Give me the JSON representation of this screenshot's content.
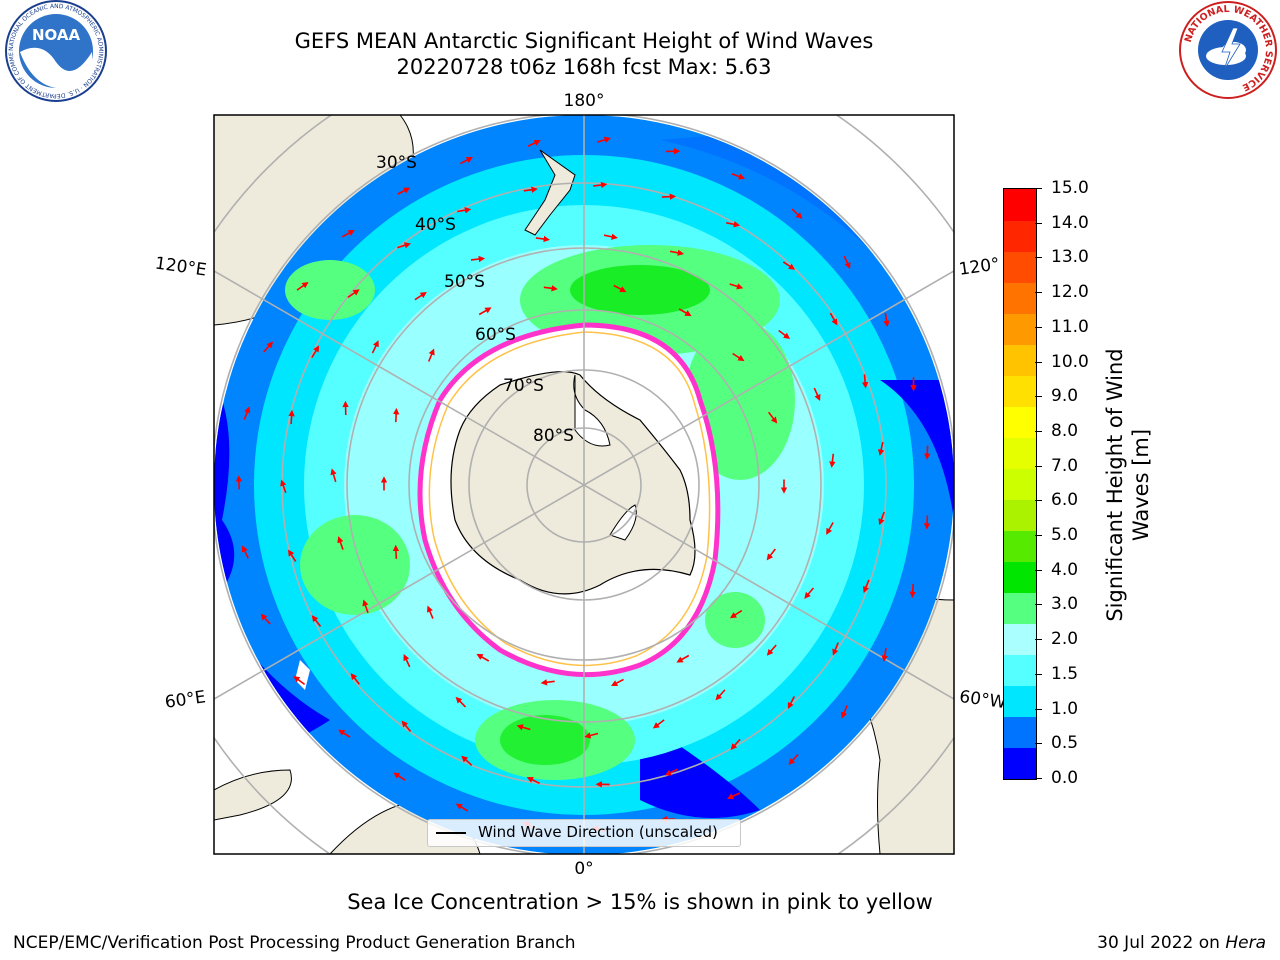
{
  "title": {
    "line1": "GEFS MEAN Antarctic Significant Height of Wind Waves",
    "line2": "20220728 t06z 168h fcst   Max: 5.63"
  },
  "map": {
    "projection": "South polar stereographic",
    "longitude_labels": [
      "180°",
      "120°E",
      "120°",
      "60°E",
      "60°W",
      "0°"
    ],
    "latitude_labels": [
      "30°S",
      "40°S",
      "50°S",
      "60°S",
      "70°S",
      "80°S"
    ],
    "legend_label": "Wind Wave Direction (unscaled)",
    "land_color": "#eeebdc",
    "arrow_color": "#ff0000"
  },
  "colorbar": {
    "title": "Significant Height of Wind Waves [m]",
    "tick_labels": [
      "0.0",
      "0.5",
      "1.0",
      "1.5",
      "2.0",
      "3.0",
      "4.0",
      "5.0",
      "6.0",
      "7.0",
      "8.0",
      "9.0",
      "10.0",
      "11.0",
      "12.0",
      "13.0",
      "14.0",
      "15.0"
    ],
    "colors": [
      "#0000ff",
      "#0073ff",
      "#00e6ff",
      "#55ffff",
      "#aaffff",
      "#55ff7f",
      "#00e600",
      "#55ea00",
      "#aaf200",
      "#ccff00",
      "#e6ff00",
      "#ffff00",
      "#ffe000",
      "#ffc300",
      "#ff9900",
      "#ff7300",
      "#ff4c00",
      "#ff2600",
      "#ff0000"
    ]
  },
  "ice_note": "Sea Ice Concentration > 15% is shown in pink to yellow",
  "footer": {
    "credit": "NCEP/EMC/Verification Post Processing Product Generation Branch",
    "date_prefix": "30 Jul 2022 on ",
    "date_host": "Hera"
  },
  "logos": {
    "noaa_text": "NOAA",
    "noaa_ring": "NATIONAL OCEANIC AND ATMOSPHERIC ADMINISTRATION · U.S. DEPARTMENT OF COMMERCE",
    "nws_ring": "NATIONAL WEATHER SERVICE"
  }
}
